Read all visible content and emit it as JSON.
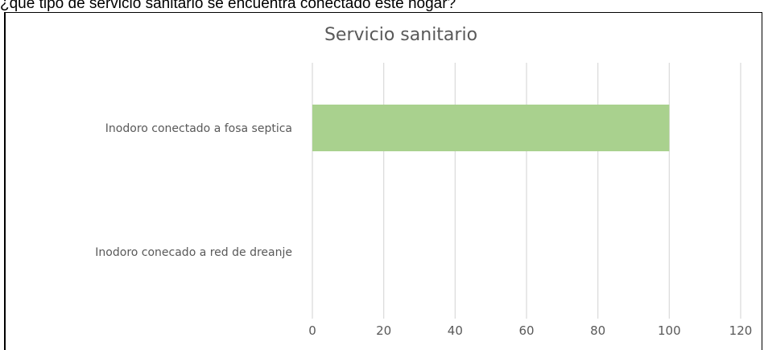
{
  "question_text": "¿qué tipo de servicio sanitario se encuentra conectado este hogar?",
  "chart_data": {
    "type": "bar",
    "orientation": "horizontal",
    "title": "Servicio sanitario",
    "categories": [
      "Inodoro conectado a fosa septica",
      "Inodoro conecado a red de dreanje"
    ],
    "values": [
      100,
      0
    ],
    "xlim": [
      0,
      120
    ],
    "xticks": [
      0,
      20,
      40,
      60,
      80,
      100,
      120
    ],
    "xtick_labels": [
      "0",
      "20",
      "40",
      "60",
      "80",
      "100",
      "120"
    ],
    "xlabel": "",
    "ylabel": "",
    "grid": "vertical",
    "legend": "none",
    "bar_color": "#a9d18e"
  }
}
